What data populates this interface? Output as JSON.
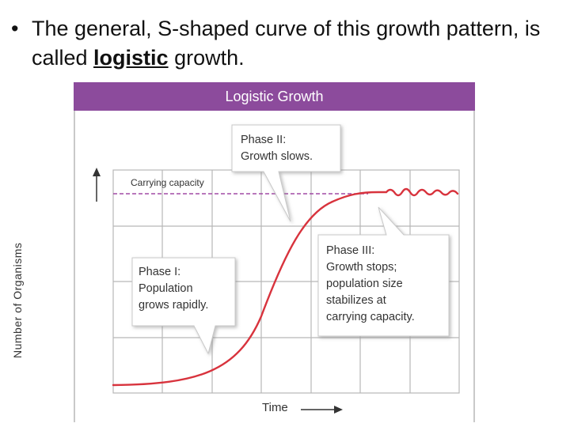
{
  "slide": {
    "bullet": "•",
    "text_before": "The general, S-shaped curve of this growth pattern, is called ",
    "emphasis": "logistic",
    "text_after": " growth."
  },
  "figure": {
    "title": "Logistic Growth",
    "carrying_capacity_label": "Carrying capacity",
    "y_axis_label": "Number of Organisms",
    "x_axis_label": "Time",
    "callouts": {
      "phase1": [
        "Phase I:",
        "Population",
        "grows rapidly."
      ],
      "phase2": [
        "Phase II:",
        "Growth slows."
      ],
      "phase3": [
        "Phase III:",
        "Growth stops;",
        "population size",
        "stabilizes at",
        "carrying capacity."
      ]
    },
    "colors": {
      "header": "#8c4b9c",
      "curve": "#d8333d",
      "capacity_line": "#a24aa6",
      "grid": "#b7b7b7"
    }
  }
}
